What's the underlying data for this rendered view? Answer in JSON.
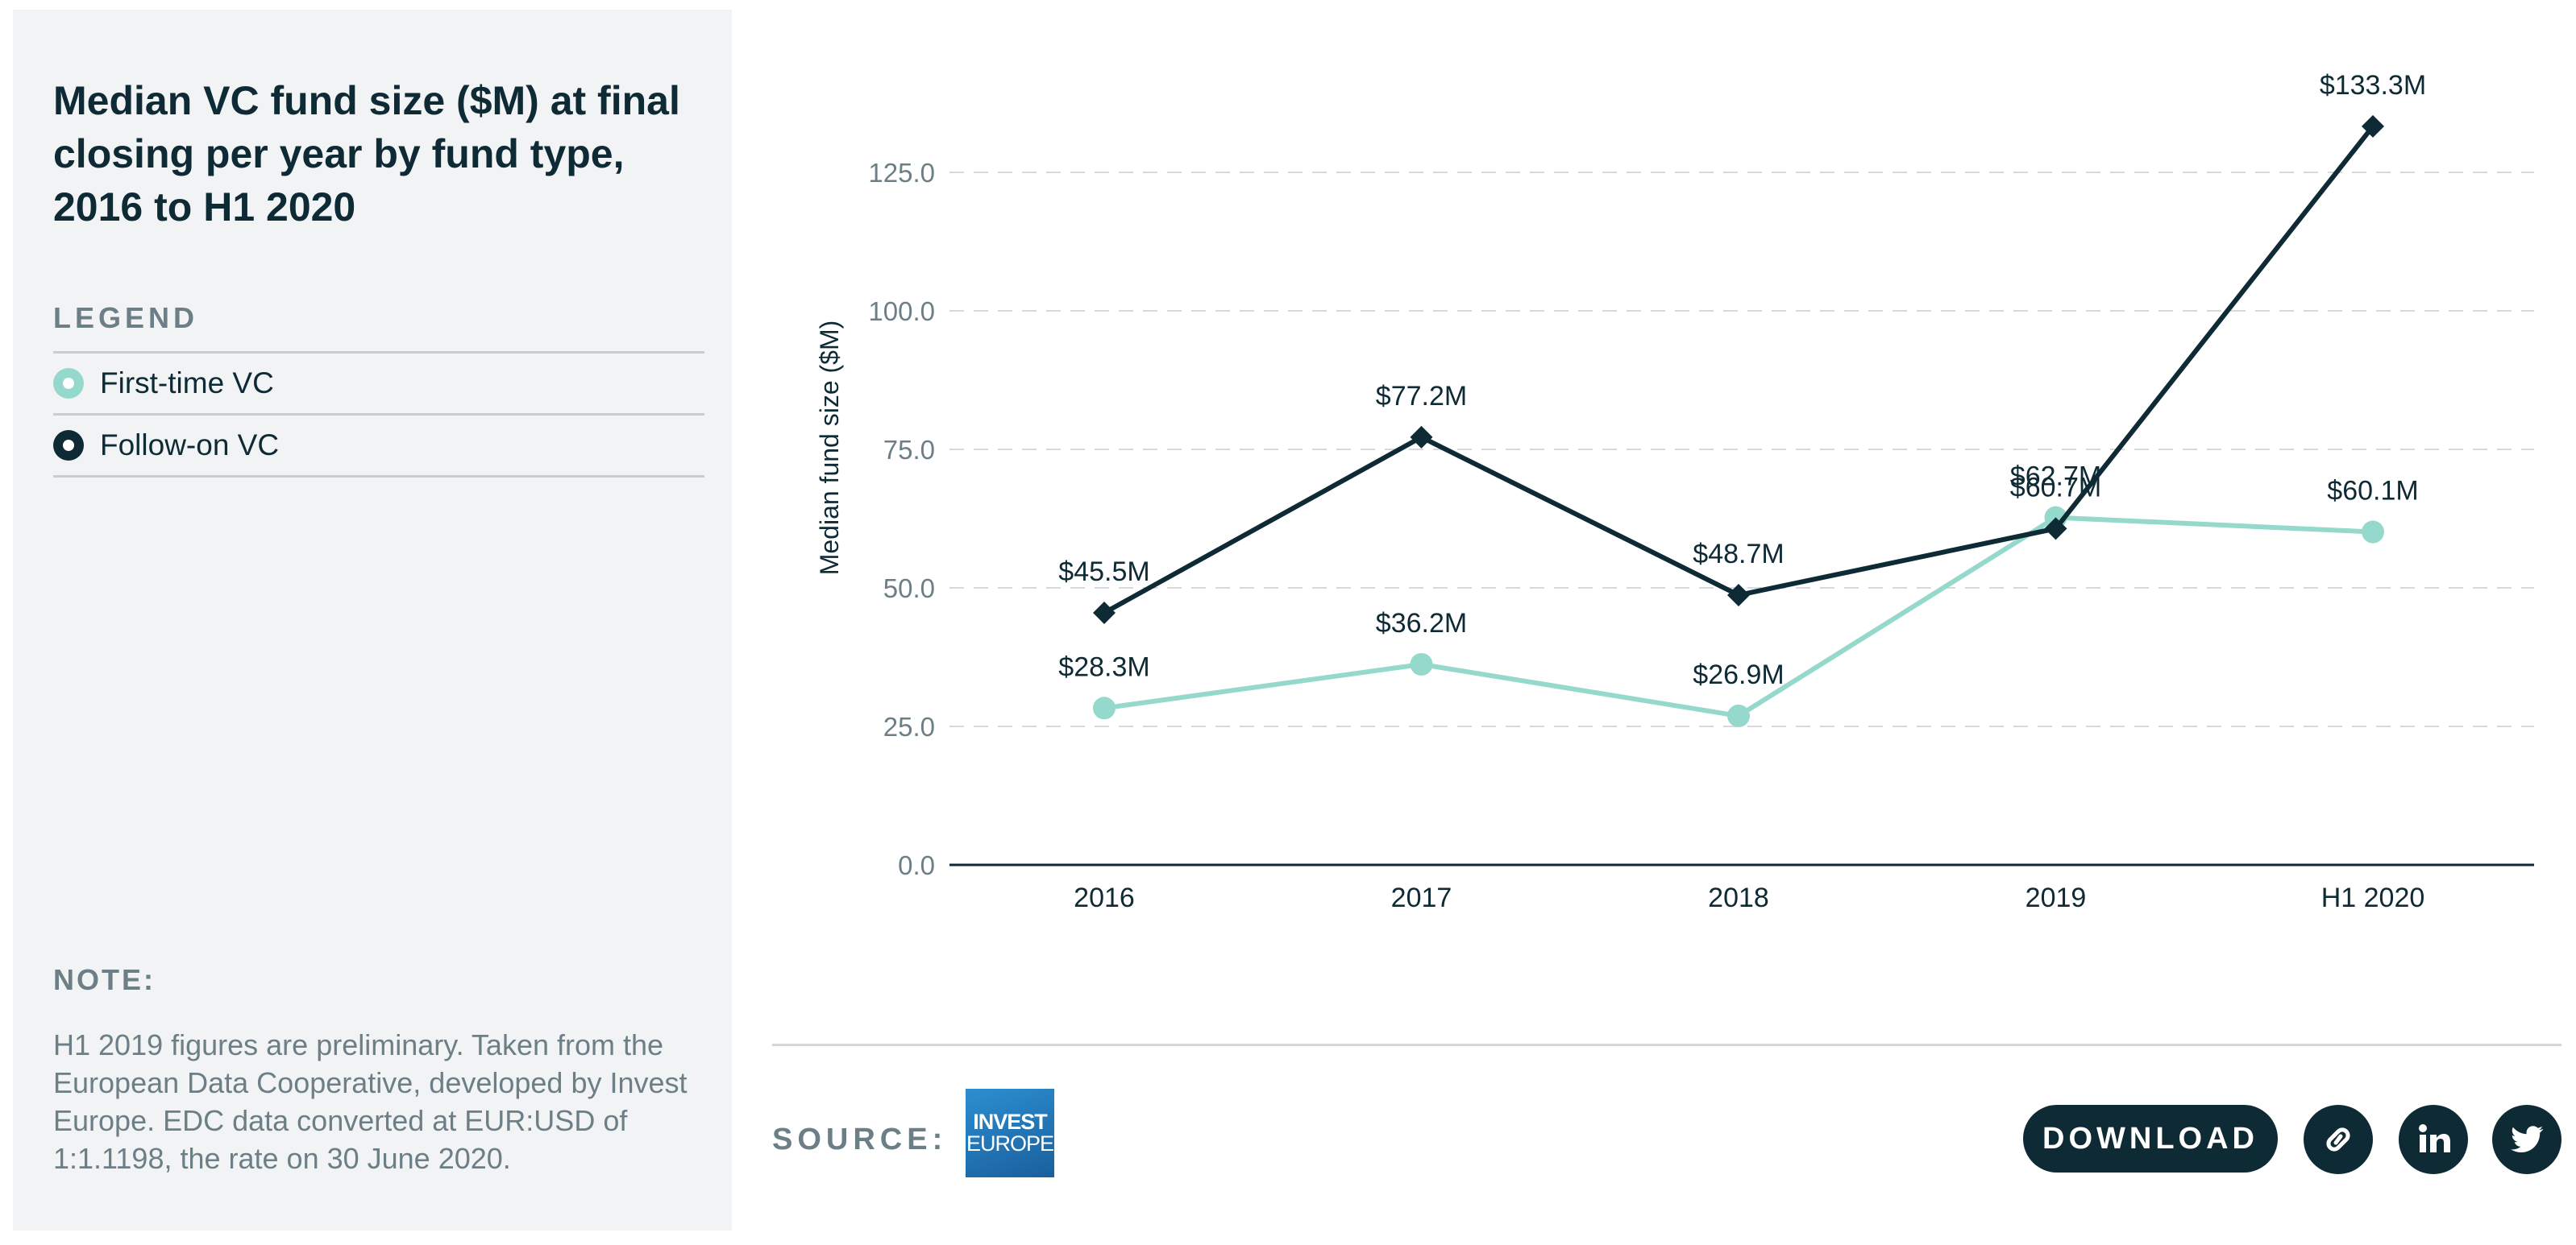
{
  "chart_data": {
    "type": "line",
    "title": "Median VC fund size ($M) at final closing per year by fund type, 2016 to H1 2020",
    "ylabel": "Median fund size ($M)",
    "xlabel": "",
    "categories": [
      "2016",
      "2017",
      "2018",
      "2019",
      "H1 2020"
    ],
    "ylim": [
      0,
      125
    ],
    "yticks": [
      "0.0",
      "25.0",
      "50.0",
      "75.0",
      "100.0",
      "125.0"
    ],
    "grid": true,
    "series": [
      {
        "name": "First-time VC",
        "color": "#95d8cc",
        "marker": "circle",
        "values": [
          28.3,
          36.2,
          26.9,
          62.7,
          60.1
        ],
        "labels": [
          "$28.3M",
          "$36.2M",
          "$26.9M",
          "$62.7M",
          "$60.1M"
        ]
      },
      {
        "name": "Follow-on VC",
        "color": "#0e2a35",
        "marker": "diamond",
        "values": [
          45.5,
          77.2,
          48.7,
          60.7,
          133.3
        ],
        "labels": [
          "$45.5M",
          "$77.2M",
          "$48.7M",
          "$60.7M",
          "$133.3M"
        ]
      }
    ]
  },
  "sidebar": {
    "title": "Median VC fund size ($M) at final closing per year by fund type, 2016 to H1 2020",
    "legend_heading": "LEGEND",
    "legend_items": [
      {
        "label": "First-time VC",
        "color": "#95d8cc"
      },
      {
        "label": "Follow-on VC",
        "color": "#0e2a35"
      }
    ],
    "note_heading": "NOTE:",
    "note_text": "H1 2019 figures are preliminary. Taken from the European Data Cooperative, developed by Invest Europe. EDC data converted at EUR:USD of 1:1.1198, the rate on 30 June 2020."
  },
  "footer": {
    "source_label": "SOURCE:",
    "logo_line1": "INVEST",
    "logo_line2": "EUROPE",
    "download_label": "DOWNLOAD",
    "icons": [
      "link-icon",
      "linkedin-icon",
      "twitter-icon"
    ]
  }
}
